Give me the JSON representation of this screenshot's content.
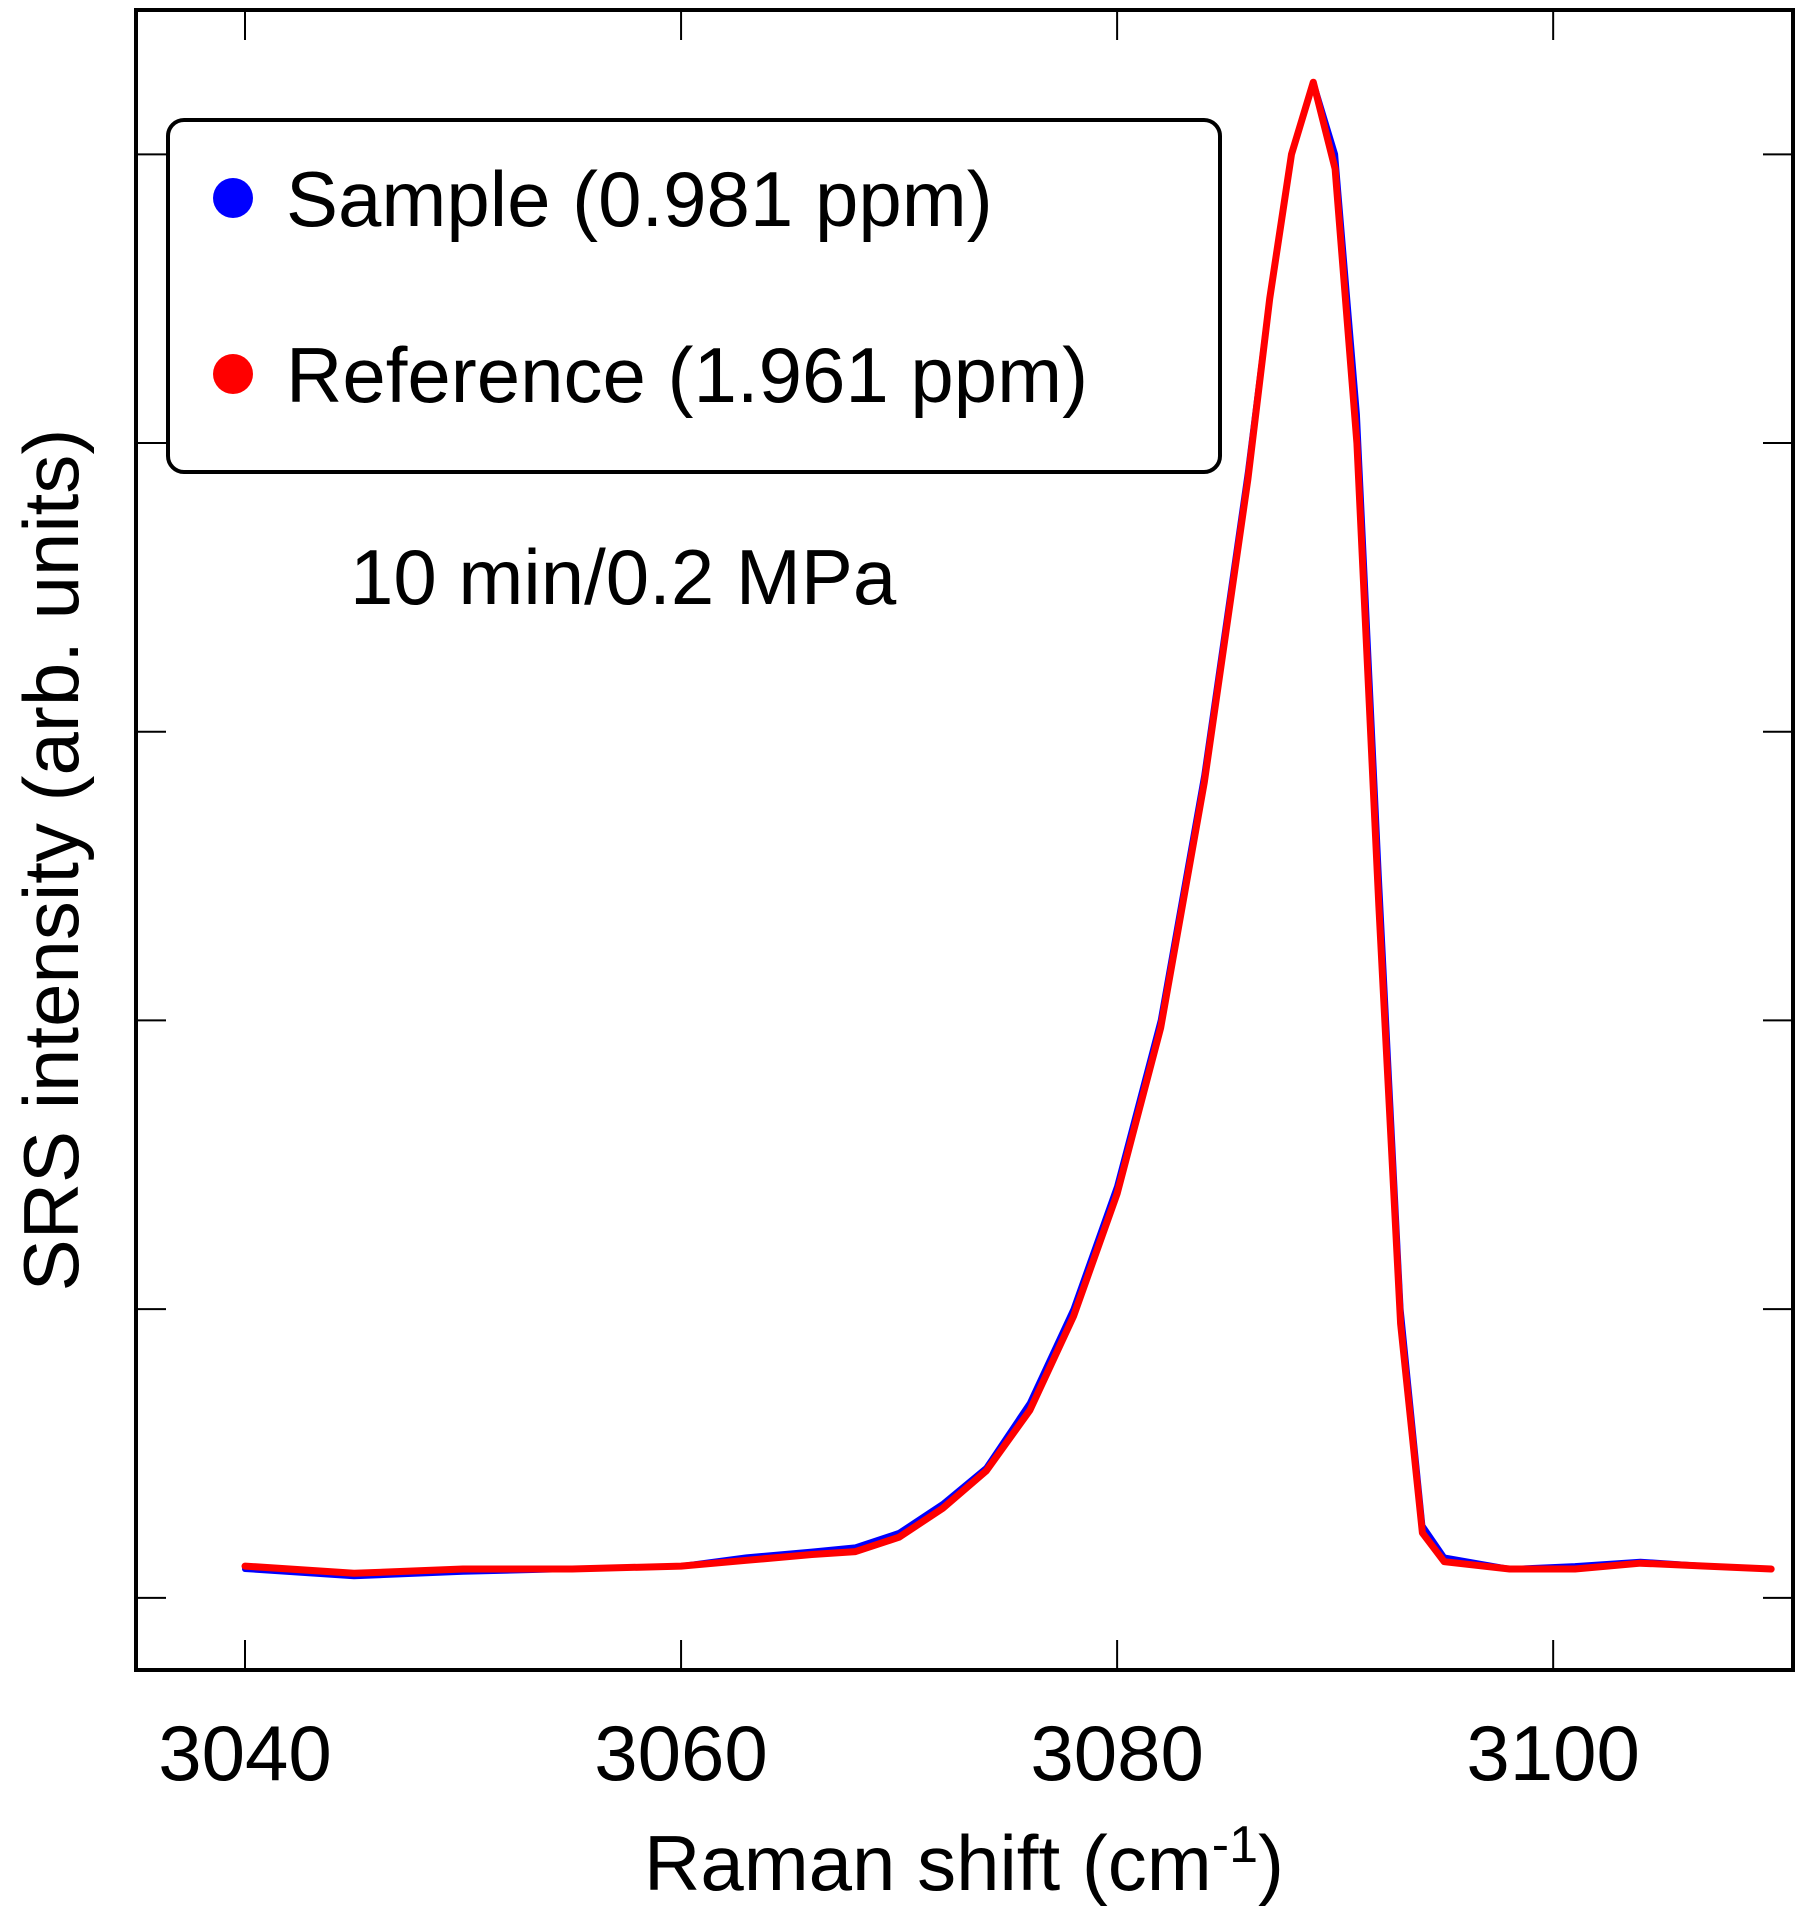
{
  "chart_data": {
    "type": "line",
    "xlabel": "Raman shift (cm",
    "xlabel_sup": "-1",
    "xlabel_close": ")",
    "ylabel": "SRS intensity (arb. units)",
    "xlim": [
      3035,
      3111
    ],
    "ylim": [
      -0.05,
      1.1
    ],
    "x_ticks": [
      3040,
      3060,
      3080,
      3100
    ],
    "x_tick_labels": [
      "3040",
      "3060",
      "3080",
      "3100"
    ],
    "y_ticks": [
      0.0,
      0.2,
      0.4,
      0.6,
      0.8,
      1.0
    ],
    "y_tick_labels_shown": false,
    "annotation": "10 min/0.2 MPa",
    "legend_position": "top-left",
    "series": [
      {
        "name": "Sample (0.981 ppm)",
        "color": "#0000ff",
        "x": [
          3040,
          3045,
          3050,
          3055,
          3060,
          3063,
          3066,
          3068,
          3070,
          3072,
          3074,
          3076,
          3078,
          3080,
          3082,
          3084,
          3086,
          3087,
          3088,
          3089,
          3090,
          3091,
          3092,
          3093,
          3094,
          3095,
          3098,
          3101,
          3104,
          3107,
          3110
        ],
        "y": [
          0.02,
          0.015,
          0.018,
          0.02,
          0.022,
          0.028,
          0.032,
          0.035,
          0.045,
          0.065,
          0.09,
          0.135,
          0.2,
          0.285,
          0.4,
          0.57,
          0.78,
          0.9,
          1.0,
          1.05,
          1.0,
          0.82,
          0.5,
          0.2,
          0.05,
          0.028,
          0.02,
          0.022,
          0.025,
          0.022,
          0.02
        ]
      },
      {
        "name": "Reference (1.961 ppm)",
        "color": "#ff0000",
        "x": [
          3040,
          3045,
          3050,
          3055,
          3060,
          3063,
          3066,
          3068,
          3070,
          3072,
          3074,
          3076,
          3078,
          3080,
          3082,
          3084,
          3086,
          3087,
          3088,
          3089,
          3090,
          3091,
          3092,
          3093,
          3094,
          3095,
          3098,
          3101,
          3104,
          3107,
          3110
        ],
        "y": [
          0.022,
          0.017,
          0.02,
          0.02,
          0.022,
          0.026,
          0.03,
          0.032,
          0.042,
          0.062,
          0.088,
          0.13,
          0.195,
          0.28,
          0.395,
          0.565,
          0.775,
          0.9,
          1.0,
          1.05,
          0.99,
          0.8,
          0.48,
          0.19,
          0.045,
          0.025,
          0.02,
          0.02,
          0.024,
          0.022,
          0.02
        ]
      }
    ]
  }
}
